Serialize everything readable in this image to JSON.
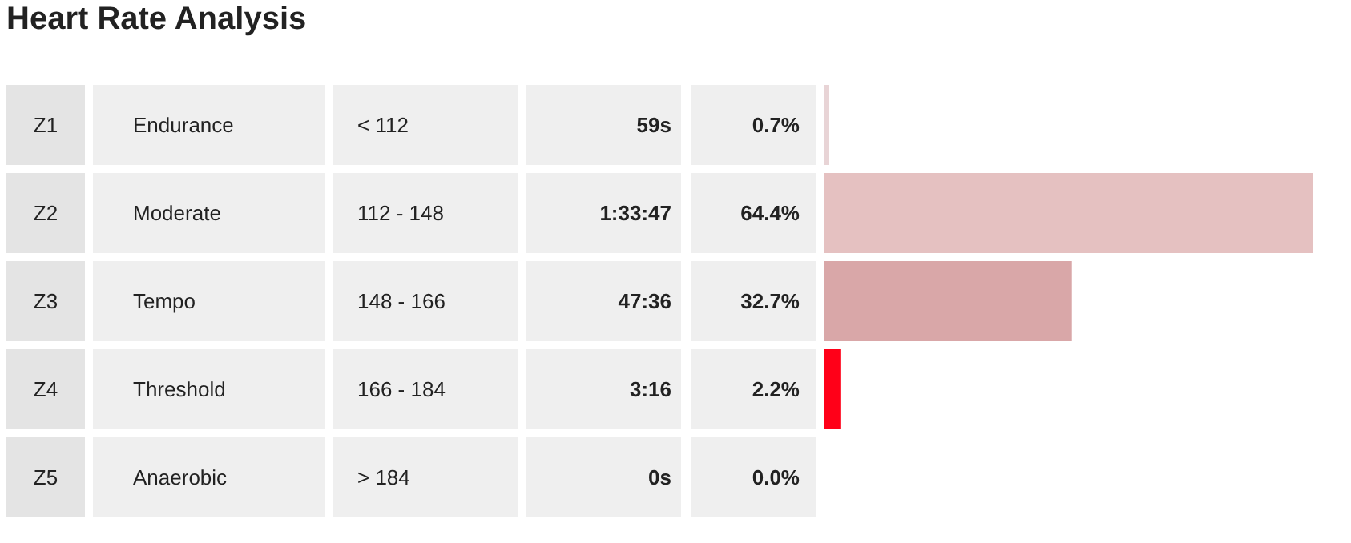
{
  "chart_data": {
    "type": "bar",
    "orientation": "horizontal",
    "title": "Heart Rate Analysis",
    "categories": [
      "Z1",
      "Z2",
      "Z3",
      "Z4",
      "Z5"
    ],
    "values": [
      0.7,
      64.4,
      32.7,
      2.2,
      0.0
    ],
    "colors": [
      "#e8d4d6",
      "#e5c1c1",
      "#d9a7a8",
      "#ff0018",
      "#eeeeee"
    ],
    "value_labels": [
      "0.7%",
      "64.4%",
      "32.7%",
      "2.2%",
      "0.0%"
    ],
    "xlim": [
      0,
      64.4
    ],
    "annotations": [
      "Endurance",
      "< 112",
      "59s",
      "Moderate",
      "112 - 148",
      "1:33:47",
      "Tempo",
      "148 - 166",
      "47:36",
      "Threshold",
      "166 - 184",
      "3:16",
      "Anaerobic",
      "> 184",
      "0s"
    ],
    "legend": false
  }
}
